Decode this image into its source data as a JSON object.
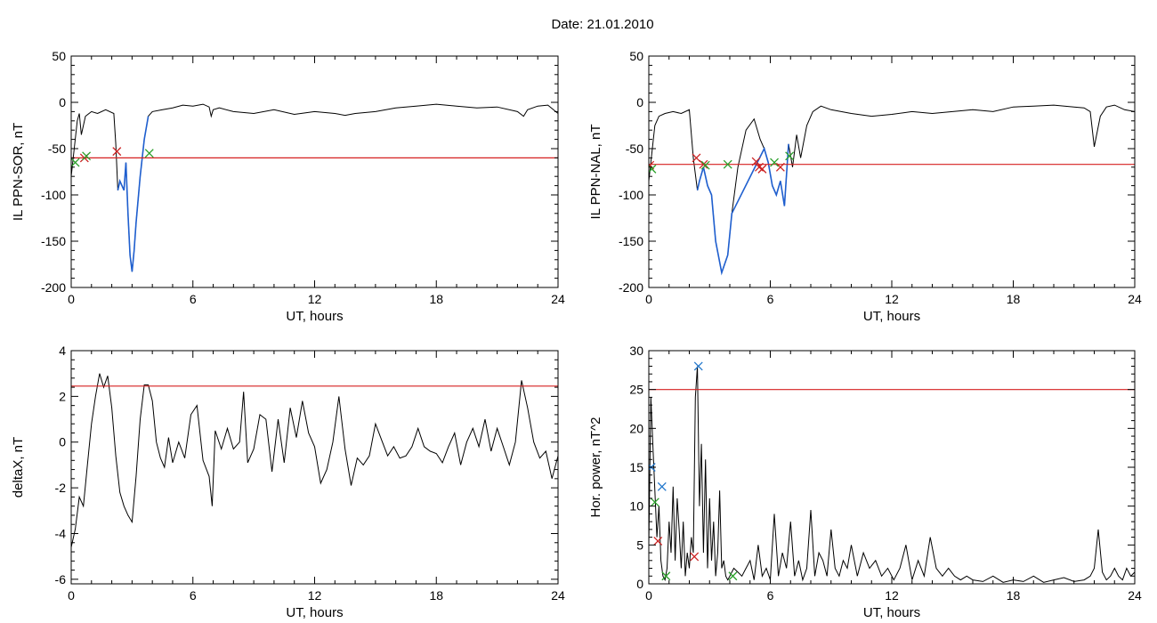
{
  "header": {
    "title": "Date:  21.01.2010"
  },
  "chart_data": [
    {
      "type": "line",
      "id": "ppn-sor",
      "xlabel": "UT, hours",
      "ylabel": "IL PPN-SOR, nT",
      "xlim": [
        0,
        24
      ],
      "ylim": [
        -200,
        50
      ],
      "xticks": [
        0,
        6,
        12,
        18,
        24
      ],
      "yticks": [
        -200,
        -150,
        -100,
        -50,
        0,
        50
      ],
      "threshold": -60,
      "series": [
        {
          "color": "#000000",
          "x": [
            0,
            0.15,
            0.3,
            0.4,
            0.5,
            0.7,
            1.0,
            1.3,
            1.7,
            2.1,
            2.2,
            2.3,
            2.4,
            2.5,
            2.6,
            2.7,
            2.8,
            2.9,
            3.0,
            3.1,
            3.2,
            3.4,
            3.6,
            3.8,
            4.0,
            4.5,
            5.0,
            5.5,
            6.0,
            6.5,
            6.8,
            6.9,
            7.0,
            7.3,
            8.0,
            9.0,
            10.0,
            11.0,
            12.0,
            13.0,
            13.5,
            14.0,
            15.0,
            16.0,
            17.0,
            18.0,
            19.0,
            20.0,
            21.0,
            22.0,
            22.3,
            22.5,
            23.0,
            23.5,
            24.0
          ],
          "y": [
            -80,
            -50,
            -20,
            -12,
            -35,
            -15,
            -10,
            -12,
            -8,
            -12,
            -45,
            -95,
            -85,
            -90,
            -95,
            -65,
            -120,
            -165,
            -183,
            -160,
            -130,
            -80,
            -40,
            -15,
            -10,
            -8,
            -6,
            -3,
            -4,
            -2,
            -5,
            -15,
            -8,
            -6,
            -10,
            -12,
            -8,
            -13,
            -10,
            -12,
            -14,
            -12,
            -10,
            -6,
            -4,
            -2,
            -4,
            -6,
            -5,
            -10,
            -15,
            -8,
            -4,
            -3,
            -12
          ]
        },
        {
          "color": "#1f5fcf",
          "x": [
            2.3,
            2.4,
            2.5,
            2.6,
            2.7,
            2.8,
            2.9,
            3.0,
            3.1,
            3.2,
            3.4,
            3.6,
            3.8
          ],
          "y": [
            -95,
            -85,
            -90,
            -95,
            -65,
            -120,
            -165,
            -183,
            -160,
            -130,
            -80,
            -40,
            -15
          ]
        }
      ],
      "markers": [
        {
          "x": 0.2,
          "y": -65,
          "color": "#2aa02a"
        },
        {
          "x": 0.65,
          "y": -60,
          "color": "#cc2222"
        },
        {
          "x": 0.75,
          "y": -58,
          "color": "#2aa02a"
        },
        {
          "x": 2.25,
          "y": -53,
          "color": "#cc2222"
        },
        {
          "x": 3.85,
          "y": -55,
          "color": "#2aa02a"
        }
      ]
    },
    {
      "type": "line",
      "id": "ppn-nal",
      "xlabel": "UT, hours",
      "ylabel": "IL PPN-NAL, nT",
      "xlim": [
        0,
        24
      ],
      "ylim": [
        -200,
        50
      ],
      "xticks": [
        0,
        6,
        12,
        18,
        24
      ],
      "yticks": [
        -200,
        -150,
        -100,
        -50,
        0,
        50
      ],
      "threshold": -67,
      "series": [
        {
          "color": "#000000",
          "x": [
            0,
            0.15,
            0.3,
            0.5,
            0.8,
            1.2,
            1.6,
            2.0,
            2.2,
            2.4,
            2.5,
            2.7,
            2.9,
            3.1,
            3.3,
            3.6,
            3.9,
            4.1,
            4.4,
            4.8,
            5.2,
            5.5,
            5.7,
            5.9,
            6.1,
            6.3,
            6.5,
            6.7,
            6.9,
            7.1,
            7.3,
            7.5,
            7.8,
            8.1,
            8.5,
            9.0,
            10.0,
            11.0,
            12.0,
            13.0,
            14.0,
            15.0,
            16.0,
            17.0,
            18.0,
            19.0,
            20.0,
            21.0,
            21.5,
            21.8,
            22.0,
            22.3,
            22.6,
            23.0,
            23.5,
            24.0
          ],
          "y": [
            -85,
            -55,
            -25,
            -15,
            -12,
            -10,
            -12,
            -8,
            -60,
            -95,
            -85,
            -70,
            -90,
            -100,
            -150,
            -184,
            -165,
            -120,
            -70,
            -30,
            -18,
            -40,
            -50,
            -65,
            -90,
            -100,
            -85,
            -112,
            -45,
            -70,
            -35,
            -60,
            -25,
            -10,
            -4,
            -8,
            -12,
            -15,
            -13,
            -10,
            -12,
            -10,
            -8,
            -10,
            -5,
            -4,
            -3,
            -5,
            -6,
            -10,
            -48,
            -15,
            -5,
            -3,
            -8,
            -10
          ]
        },
        {
          "color": "#1f5fcf",
          "x": [
            2.4,
            2.5,
            2.7,
            2.9,
            3.1,
            3.3,
            3.6,
            3.9,
            4.1,
            5.7,
            5.9,
            6.1,
            6.3,
            6.5,
            6.7,
            6.9
          ],
          "y": [
            -95,
            -85,
            -70,
            -90,
            -100,
            -150,
            -184,
            -165,
            -120,
            -50,
            -65,
            -90,
            -100,
            -85,
            -112,
            -45
          ]
        }
      ],
      "markers": [
        {
          "x": 0.05,
          "y": -68,
          "color": "#cc2222"
        },
        {
          "x": 0.15,
          "y": -72,
          "color": "#2aa02a"
        },
        {
          "x": 2.35,
          "y": -60,
          "color": "#cc2222"
        },
        {
          "x": 2.7,
          "y": -67,
          "color": "#cc2222"
        },
        {
          "x": 2.8,
          "y": -68,
          "color": "#2aa02a"
        },
        {
          "x": 3.9,
          "y": -67,
          "color": "#2aa02a"
        },
        {
          "x": 5.3,
          "y": -64,
          "color": "#cc2222"
        },
        {
          "x": 5.45,
          "y": -70,
          "color": "#cc2222"
        },
        {
          "x": 5.6,
          "y": -72,
          "color": "#cc2222"
        },
        {
          "x": 6.2,
          "y": -65,
          "color": "#2aa02a"
        },
        {
          "x": 6.5,
          "y": -70,
          "color": "#cc2222"
        },
        {
          "x": 6.95,
          "y": -58,
          "color": "#2aa02a"
        }
      ]
    },
    {
      "type": "line",
      "id": "deltax",
      "xlabel": "UT, hours",
      "ylabel": "deltaX, nT",
      "xlim": [
        0,
        24
      ],
      "ylim": [
        -6.2,
        4
      ],
      "xticks": [
        0,
        6,
        12,
        18,
        24
      ],
      "yticks": [
        -6,
        -4,
        -2,
        0,
        2,
        4
      ],
      "threshold": 2.45,
      "series": [
        {
          "color": "#000000",
          "x": [
            0,
            0.2,
            0.4,
            0.6,
            0.8,
            1.0,
            1.2,
            1.4,
            1.6,
            1.8,
            2.0,
            2.2,
            2.4,
            2.6,
            2.8,
            3.0,
            3.2,
            3.4,
            3.6,
            3.8,
            4.0,
            4.2,
            4.4,
            4.6,
            4.8,
            5.0,
            5.3,
            5.6,
            5.9,
            6.2,
            6.5,
            6.8,
            6.95,
            7.1,
            7.4,
            7.7,
            8.0,
            8.3,
            8.5,
            8.7,
            9.0,
            9.3,
            9.6,
            9.9,
            10.2,
            10.5,
            10.8,
            11.1,
            11.4,
            11.7,
            12.0,
            12.3,
            12.6,
            12.9,
            13.2,
            13.5,
            13.8,
            14.1,
            14.4,
            14.7,
            15.0,
            15.3,
            15.6,
            15.9,
            16.2,
            16.5,
            16.8,
            17.1,
            17.4,
            17.7,
            18.0,
            18.3,
            18.6,
            18.9,
            19.2,
            19.5,
            19.8,
            20.1,
            20.4,
            20.7,
            21.0,
            21.3,
            21.6,
            21.9,
            22.2,
            22.5,
            22.8,
            23.1,
            23.4,
            23.7,
            24.0
          ],
          "y": [
            -4.6,
            -3.8,
            -2.4,
            -2.8,
            -1.0,
            0.8,
            2.0,
            3.0,
            2.4,
            2.9,
            1.5,
            -0.6,
            -2.2,
            -2.8,
            -3.2,
            -3.5,
            -1.5,
            1.0,
            2.5,
            2.5,
            1.8,
            0.0,
            -0.7,
            -1.1,
            0.2,
            -0.9,
            0.0,
            -0.7,
            1.2,
            1.6,
            -0.8,
            -1.5,
            -2.8,
            0.5,
            -0.3,
            0.6,
            -0.3,
            0.0,
            2.2,
            -0.9,
            -0.3,
            1.2,
            1.0,
            -1.3,
            1.0,
            -0.9,
            1.5,
            0.2,
            1.8,
            0.4,
            -0.2,
            -1.8,
            -1.2,
            0.0,
            2.0,
            -0.3,
            -1.9,
            -0.7,
            -1.0,
            -0.6,
            0.8,
            0.1,
            -0.6,
            -0.2,
            -0.7,
            -0.6,
            -0.2,
            0.6,
            -0.2,
            -0.4,
            -0.5,
            -0.9,
            -0.2,
            0.4,
            -1.0,
            0.0,
            0.6,
            -0.2,
            1.0,
            -0.4,
            0.6,
            -0.2,
            -1.0,
            0.0,
            2.7,
            1.5,
            0.0,
            -0.7,
            -0.4,
            -1.6,
            -0.6
          ]
        }
      ],
      "markers": []
    },
    {
      "type": "line",
      "id": "hor-power",
      "xlabel": "UT, hours",
      "ylabel": "Hor. power, nT^2",
      "xlim": [
        0,
        24
      ],
      "ylim": [
        0,
        30
      ],
      "xticks": [
        0,
        6,
        12,
        18,
        24
      ],
      "yticks": [
        0,
        5,
        10,
        15,
        20,
        25,
        30
      ],
      "threshold": 25,
      "series": [
        {
          "color": "#000000",
          "x": [
            0,
            0.1,
            0.2,
            0.3,
            0.4,
            0.5,
            0.6,
            0.7,
            0.8,
            0.9,
            1.0,
            1.1,
            1.2,
            1.3,
            1.4,
            1.5,
            1.6,
            1.7,
            1.8,
            1.9,
            2.0,
            2.1,
            2.2,
            2.3,
            2.4,
            2.5,
            2.6,
            2.7,
            2.8,
            2.9,
            3.0,
            3.1,
            3.2,
            3.3,
            3.4,
            3.5,
            3.6,
            3.7,
            3.8,
            3.9,
            4.0,
            4.2,
            4.4,
            4.6,
            4.8,
            5.0,
            5.2,
            5.4,
            5.6,
            5.8,
            6.0,
            6.2,
            6.4,
            6.6,
            6.8,
            7.0,
            7.2,
            7.4,
            7.6,
            7.8,
            8.0,
            8.2,
            8.4,
            8.6,
            8.8,
            9.0,
            9.2,
            9.4,
            9.6,
            9.8,
            10.0,
            10.3,
            10.6,
            10.9,
            11.2,
            11.5,
            11.8,
            12.1,
            12.4,
            12.7,
            13.0,
            13.3,
            13.6,
            13.9,
            14.2,
            14.5,
            14.8,
            15.1,
            15.4,
            15.7,
            16.0,
            16.5,
            17.0,
            17.5,
            18.0,
            18.5,
            19.0,
            19.5,
            20.0,
            20.5,
            21.0,
            21.5,
            21.8,
            22.0,
            22.2,
            22.4,
            22.6,
            22.8,
            23.0,
            23.2,
            23.4,
            23.6,
            23.8,
            24.0
          ],
          "y": [
            5,
            24,
            18,
            12,
            6,
            10,
            3,
            1,
            0.5,
            2,
            8,
            4,
            12.5,
            3,
            11,
            7,
            2,
            8,
            1,
            4,
            2,
            6,
            4,
            24,
            28,
            10,
            18,
            4,
            16,
            2,
            11,
            3,
            8,
            1,
            4,
            12,
            2,
            3,
            1,
            0.5,
            1,
            2,
            1.5,
            1,
            2,
            3,
            0.5,
            5,
            1,
            2,
            0.5,
            9,
            1,
            4,
            2,
            8,
            1,
            3,
            0.5,
            2,
            9.5,
            1,
            4,
            3,
            1,
            7,
            2,
            1,
            3,
            2,
            5,
            1,
            4,
            2,
            3,
            1,
            2,
            0.5,
            2,
            5,
            0.5,
            3,
            1,
            6,
            2,
            1,
            2,
            1,
            0.5,
            1,
            0.5,
            0.3,
            1,
            0.2,
            0.5,
            0.3,
            1,
            0.2,
            0.5,
            0.8,
            0.3,
            0.5,
            1,
            2,
            7,
            1.5,
            0.5,
            1,
            2,
            1,
            0.5,
            2,
            1,
            1.5
          ]
        }
      ],
      "markers": [
        {
          "x": 0.12,
          "y": 15,
          "color": "#2277cc"
        },
        {
          "x": 0.3,
          "y": 10.5,
          "color": "#2aa02a"
        },
        {
          "x": 0.45,
          "y": 5.5,
          "color": "#cc2222"
        },
        {
          "x": 0.65,
          "y": 12.5,
          "color": "#2277cc"
        },
        {
          "x": 0.85,
          "y": 1,
          "color": "#2aa02a"
        },
        {
          "x": 2.25,
          "y": 3.5,
          "color": "#cc2222"
        },
        {
          "x": 2.45,
          "y": 28,
          "color": "#2277cc"
        },
        {
          "x": 4.15,
          "y": 1,
          "color": "#2aa02a"
        }
      ]
    }
  ]
}
